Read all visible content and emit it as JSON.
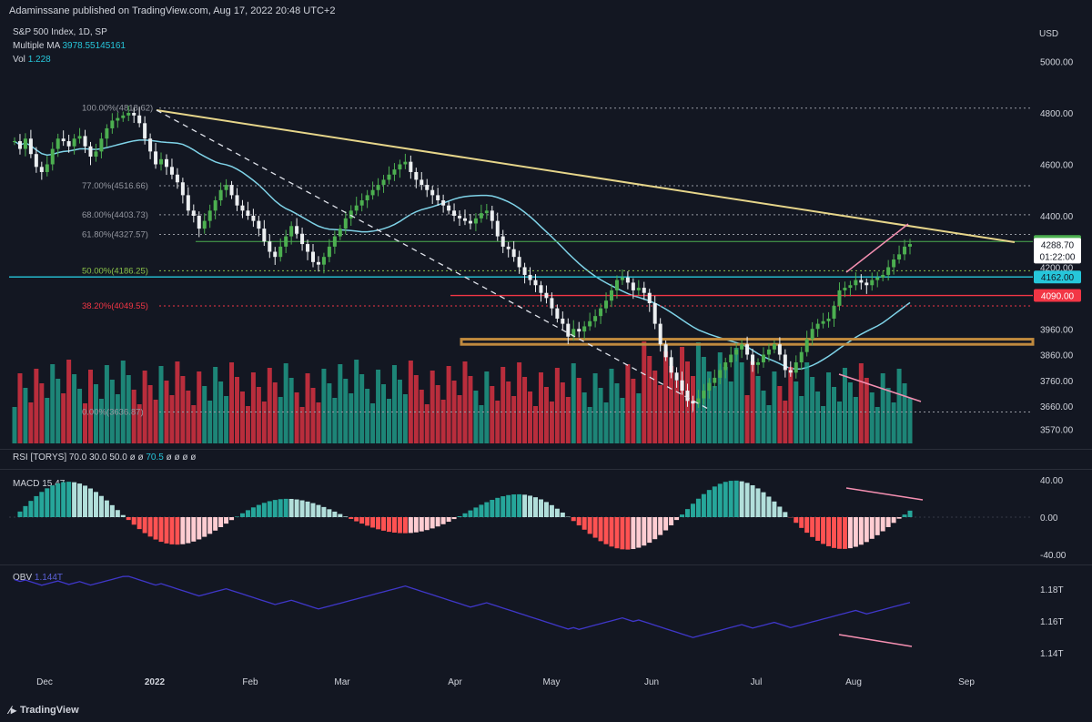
{
  "header": {
    "publisher_line": "Adaminssane published on TradingView.com, Aug 17, 2022 20:48 UTC+2"
  },
  "legend": {
    "title": "S&P 500 Index, 1D, SP",
    "ma_label": "Multiple MA",
    "ma_value": "3978.55145161",
    "vol_label": "Vol",
    "vol_value": "1.228"
  },
  "indicators": {
    "rsi": {
      "label": "RSI [TORYS]",
      "params": "70.0  30.0  50.0  ø  ø",
      "value": "70.5",
      "tail": "ø  ø  ø  ø"
    },
    "macd": {
      "label": "MACD",
      "value": "15.47"
    },
    "obv": {
      "label": "OBV",
      "value": "1.144T"
    }
  },
  "footer": {
    "brand": "TradingView"
  },
  "colors": {
    "bg": "#131722",
    "up": "#4caf50",
    "down": "#eceff1",
    "ma": "#7fd3e8",
    "trend": "#e6d58a",
    "support_blue": "#26c6da",
    "resistance_red": "#f23645",
    "zone": "#c08a3e",
    "vol_up": "#22ab94",
    "vol_down": "#f23645",
    "macd_pos": "#26a69a",
    "macd_pos_light": "#b2dfdb",
    "macd_neg": "#ff5252",
    "macd_neg_light": "#ffcdd2",
    "obv": "#3f37c9",
    "divergence": "#f48fb1"
  },
  "chart_data": [
    {
      "type": "candlestick",
      "title": "S&P 500 Index, 1D, SP",
      "ylabel": "USD",
      "ylim": [
        3570,
        5000
      ],
      "y_ticks": [
        "5000.00",
        "4800.00",
        "4600.00",
        "4400.00",
        "4200.00",
        "3960.00",
        "3860.00",
        "3760.00",
        "3660.00",
        "3570.00"
      ],
      "x_ticks": [
        "Dec",
        "2022",
        "Feb",
        "Mar",
        "Apr",
        "May",
        "Jun",
        "Jul",
        "Aug",
        "Sep"
      ],
      "price_labels": [
        {
          "text": "4300.00",
          "kind": "green"
        },
        {
          "text": "4288.70",
          "kind": "last"
        },
        {
          "text": "01:22:00",
          "kind": "timer"
        },
        {
          "text": "4162.00",
          "kind": "blue"
        },
        {
          "text": "4090.00",
          "kind": "red"
        }
      ],
      "fib_levels": [
        {
          "label": "100.00%(4818.62)",
          "value": 4818.62
        },
        {
          "label": "77.00%(4516.66)",
          "value": 4516.66
        },
        {
          "label": "68.00%(4403.73)",
          "value": 4403.73
        },
        {
          "label": "61.80%(4327.57)",
          "value": 4327.57
        },
        {
          "label": "50.00%(4186.25)",
          "value": 4186.25
        },
        {
          "label": "38.20%(4049.55)",
          "value": 4049.55
        },
        {
          "label": "0.00%(3636.87)",
          "value": 3636.87
        }
      ],
      "horizontal_lines": [
        4162,
        4090,
        4300
      ],
      "zone": [
        3900,
        3920
      ],
      "series": [
        {
          "name": "closes",
          "note": "approximate daily closes",
          "values": [
            4690,
            4660,
            4700,
            4640,
            4590,
            4570,
            4600,
            4660,
            4700,
            4690,
            4670,
            4700,
            4710,
            4670,
            4630,
            4650,
            4700,
            4740,
            4770,
            4780,
            4790,
            4800,
            4790,
            4760,
            4700,
            4650,
            4600,
            4620,
            4590,
            4560,
            4530,
            4480,
            4420,
            4400,
            4350,
            4380,
            4420,
            4460,
            4500,
            4520,
            4480,
            4440,
            4420,
            4400,
            4380,
            4350,
            4300,
            4260,
            4240,
            4280,
            4320,
            4360,
            4330,
            4290,
            4260,
            4220,
            4210,
            4240,
            4280,
            4320,
            4350,
            4390,
            4420,
            4440,
            4460,
            4480,
            4500,
            4520,
            4540,
            4560,
            4580,
            4600,
            4610,
            4570,
            4540,
            4520,
            4500,
            4480,
            4460,
            4440,
            4420,
            4400,
            4390,
            4380,
            4370,
            4390,
            4410,
            4420,
            4380,
            4320,
            4280,
            4270,
            4240,
            4200,
            4170,
            4150,
            4130,
            4100,
            4080,
            4040,
            4000,
            3980,
            3930,
            3960,
            3950,
            3970,
            3990,
            4010,
            4040,
            4070,
            4110,
            4150,
            4160,
            4140,
            4110,
            4120,
            4100,
            4060,
            3980,
            3900,
            3850,
            3790,
            3760,
            3720,
            3680,
            3670,
            3690,
            3720,
            3750,
            3770,
            3800,
            3830,
            3860,
            3880,
            3900,
            3860,
            3820,
            3830,
            3860,
            3880,
            3900,
            3860,
            3800,
            3790,
            3830,
            3870,
            3920,
            3960,
            3980,
            3990,
            4000,
            4050,
            4110,
            4120,
            4130,
            4150,
            4140,
            4130,
            4150,
            4160,
            4170,
            4200,
            4230,
            4250,
            4280,
            4290
          ]
        },
        {
          "name": "Multiple MA",
          "value": "3978.55145161"
        }
      ]
    },
    {
      "type": "bar",
      "title": "Vol",
      "note": "volume histogram overlaid on price pane, bottom band"
    },
    {
      "type": "bar",
      "title": "MACD",
      "value": 15.47,
      "ylim": [
        -40,
        40
      ],
      "y_ticks": [
        "40.00",
        "0.00",
        "-40.00"
      ]
    },
    {
      "type": "line",
      "title": "OBV",
      "value": "1.144T",
      "y_ticks": [
        "1.18T",
        "1.16T",
        "1.14T"
      ]
    }
  ]
}
